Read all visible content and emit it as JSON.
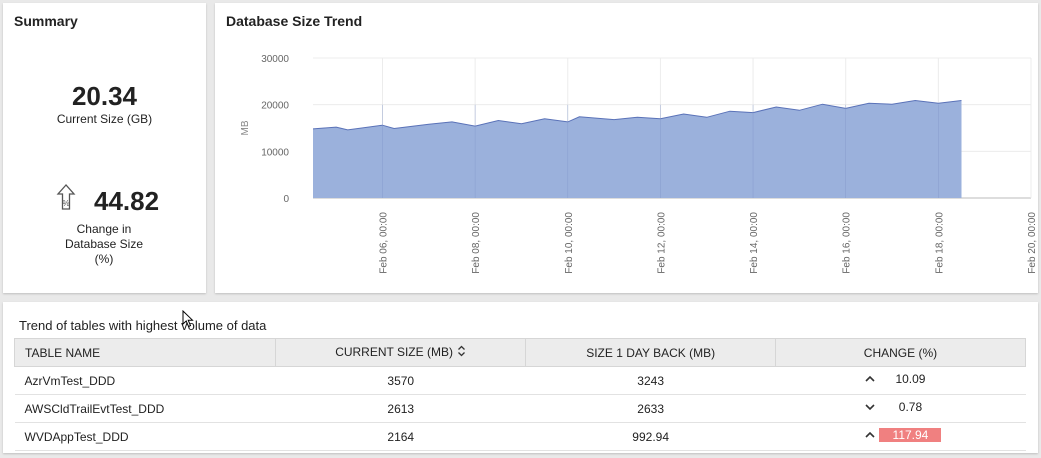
{
  "summary": {
    "title": "Summary",
    "current_size_value": "20.34",
    "current_size_label": "Current Size (GB)",
    "change_value": "44.82",
    "change_label_1": "Change in",
    "change_label_2": "Database Size",
    "change_label_3": "(%)",
    "change_icon": "arrow-up-percent-icon"
  },
  "trend": {
    "title": "Database Size Trend",
    "chart_data": {
      "type": "area",
      "ylabel": "MB",
      "ylim": [
        0,
        30000
      ],
      "y_ticks": [
        "0",
        "10000",
        "20000",
        "30000"
      ],
      "x_ticks": [
        "Feb 06, 00:00",
        "Feb 08, 00:00",
        "Feb 10, 00:00",
        "Feb 12, 00:00",
        "Feb 14, 00:00",
        "Feb 16, 00:00",
        "Feb 18, 00:00",
        "Feb 20, 00:00"
      ],
      "x_domain": [
        "Feb 04, 12:00",
        "Feb 20, 00:00"
      ],
      "grid": true,
      "color": "#9bb1dc",
      "series": [
        {
          "x": [
            "Feb 04, 12:00",
            "Feb 05, 00:00",
            "Feb 05, 06:00",
            "Feb 06, 00:00",
            "Feb 06, 06:00",
            "Feb 07, 00:00",
            "Feb 07, 12:00",
            "Feb 08, 00:00",
            "Feb 08, 12:00",
            "Feb 09, 00:00",
            "Feb 09, 12:00",
            "Feb 10, 00:00",
            "Feb 10, 06:00",
            "Feb 11, 00:00",
            "Feb 11, 12:00",
            "Feb 12, 00:00",
            "Feb 12, 12:00",
            "Feb 13, 00:00",
            "Feb 13, 12:00",
            "Feb 14, 00:00",
            "Feb 14, 12:00",
            "Feb 15, 00:00",
            "Feb 15, 12:00",
            "Feb 16, 00:00",
            "Feb 16, 12:00",
            "Feb 17, 00:00",
            "Feb 17, 12:00",
            "Feb 18, 00:00",
            "Feb 18, 12:00"
          ],
          "values": [
            14800,
            15200,
            14600,
            15600,
            14900,
            15800,
            16300,
            15400,
            16600,
            15900,
            17000,
            16300,
            17400,
            16800,
            17300,
            17000,
            18000,
            17300,
            18600,
            18300,
            19500,
            18800,
            20100,
            19200,
            20300,
            20100,
            20900,
            20300,
            20900
          ]
        }
      ]
    }
  },
  "tables": {
    "title": "Trend of tables with highest volume of data",
    "columns": [
      "TABLE NAME",
      "CURRENT SIZE (MB)",
      "SIZE 1 DAY BACK (MB)",
      "CHANGE (%)"
    ],
    "sort_icon": "sort-icon",
    "rows": [
      {
        "name": "AzrVmTest_DDD",
        "current": "3570",
        "back": "3243",
        "change": "10.09",
        "direction": "up",
        "highlight": false
      },
      {
        "name": "AWSCldTrailEvtTest_DDD",
        "current": "2613",
        "back": "2633",
        "change": "0.78",
        "direction": "down",
        "highlight": false
      },
      {
        "name": "WVDAppTest_DDD",
        "current": "2164",
        "back": "992.94",
        "change": "117.94",
        "direction": "up",
        "highlight": true
      }
    ]
  }
}
